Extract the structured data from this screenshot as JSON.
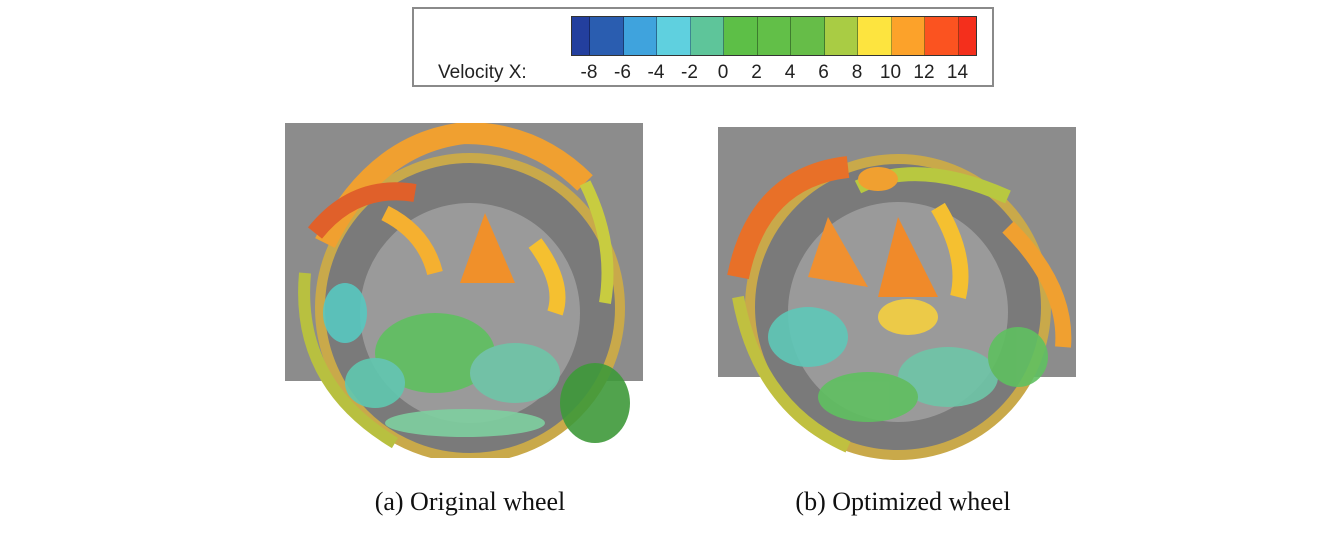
{
  "legend": {
    "title": "Velocity X:",
    "ticks": [
      "-8",
      "-6",
      "-4",
      "-2",
      "0",
      "2",
      "4",
      "6",
      "8",
      "10",
      "12",
      "14"
    ],
    "colors": [
      "#233f9e",
      "#2a5db0",
      "#3fa3dd",
      "#5fd0df",
      "#5ec59a",
      "#5dbf47",
      "#62bf48",
      "#66bd48",
      "#a9cc44",
      "#fde43f",
      "#fca22a",
      "#fb5320",
      "#f42f1c"
    ]
  },
  "panels": [
    {
      "caption": "(a) Original wheel"
    },
    {
      "caption": "(b) Optimized wheel"
    }
  ]
}
